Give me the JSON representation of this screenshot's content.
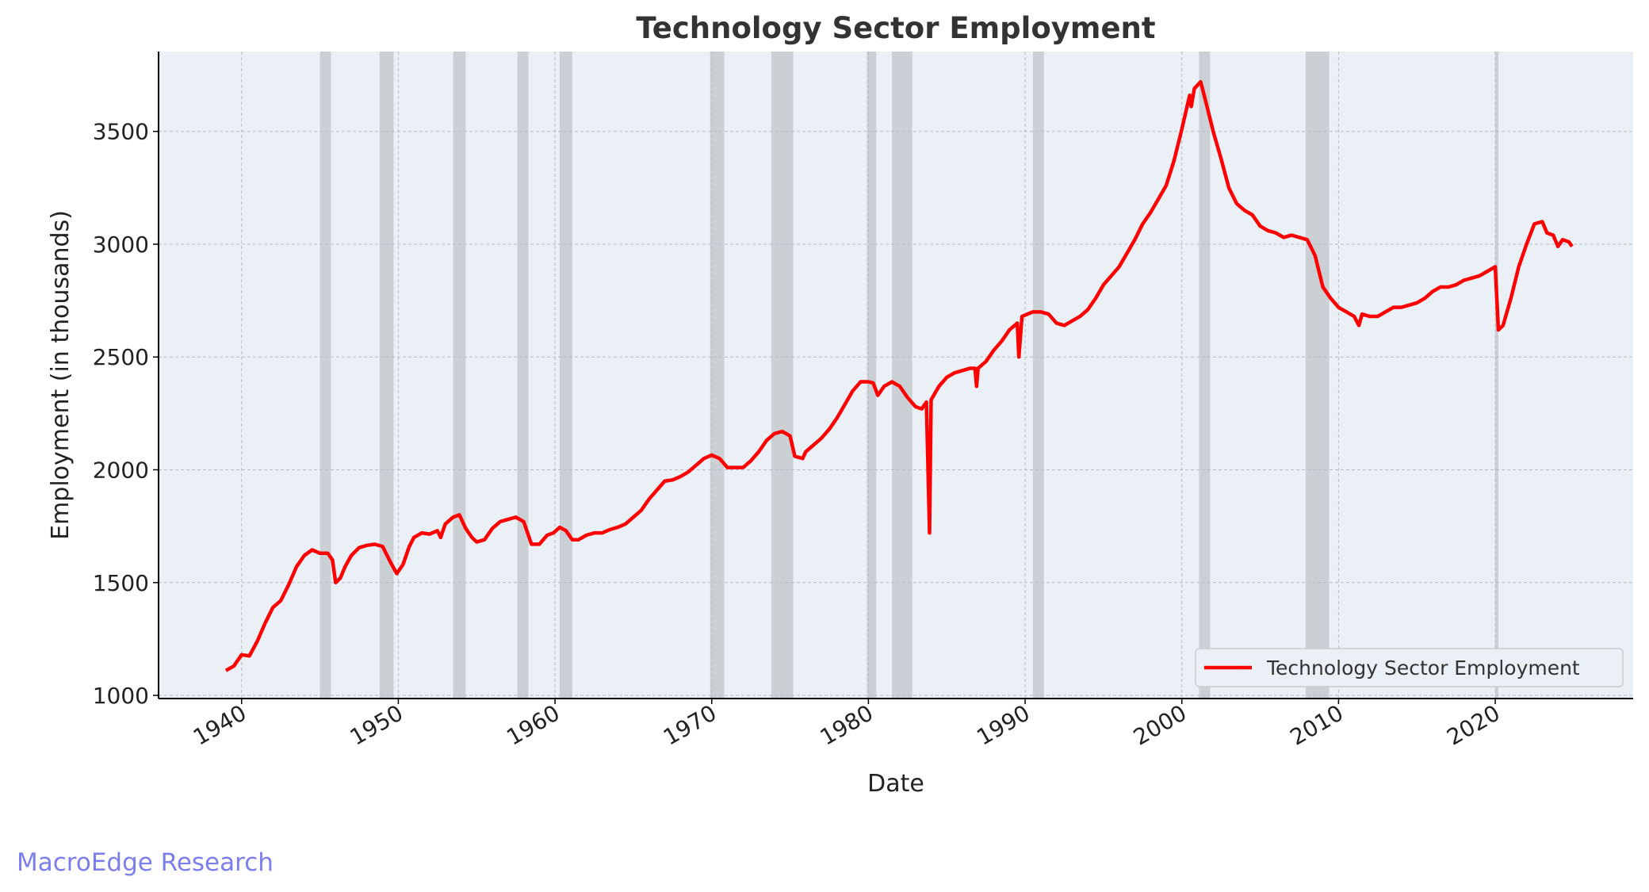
{
  "chart_data": {
    "type": "line",
    "title": "Technology Sector Employment",
    "xlabel": "Date",
    "ylabel": "Employment (in thousands)",
    "watermark": "MacroEdge Research",
    "xlim": [
      1934.7,
      2028.8
    ],
    "ylim": [
      986,
      3854
    ],
    "xticks": [
      1940,
      1950,
      1960,
      1970,
      1980,
      1990,
      2000,
      2010,
      2020
    ],
    "yticks": [
      1000,
      1500,
      2000,
      2500,
      3000,
      3500
    ],
    "grid": true,
    "legend": "lower right",
    "recession_color": "#c5cacf",
    "recessions": [
      [
        1945.0,
        1945.7
      ],
      [
        1948.8,
        1949.7
      ],
      [
        1953.5,
        1954.3
      ],
      [
        1957.6,
        1958.3
      ],
      [
        1960.3,
        1961.1
      ],
      [
        1969.9,
        1970.8
      ],
      [
        1973.8,
        1975.2
      ],
      [
        1979.9,
        1980.5
      ],
      [
        1981.5,
        1982.8
      ],
      [
        1990.5,
        1991.2
      ],
      [
        2001.1,
        2001.8
      ],
      [
        2007.9,
        2009.4
      ],
      [
        2020.0,
        2020.2
      ]
    ],
    "x": [
      1939.0,
      1939.5,
      1940.0,
      1940.5,
      1941.0,
      1941.5,
      1942,
      1942.5,
      1943,
      1943.5,
      1944,
      1944.5,
      1945,
      1945.5,
      1945.8,
      1946,
      1946.3,
      1946.6,
      1947,
      1947.5,
      1948,
      1948.5,
      1949,
      1949.5,
      1949.9,
      1950.3,
      1950.7,
      1951,
      1951.5,
      1952,
      1952.5,
      1952.7,
      1953,
      1953.5,
      1953.9,
      1954.3,
      1954.7,
      1955,
      1955.5,
      1956,
      1956.5,
      1957,
      1957.5,
      1958,
      1958.5,
      1959,
      1959.5,
      1959.9,
      1960.3,
      1960.7,
      1961.1,
      1961.5,
      1962,
      1962.5,
      1963,
      1963.5,
      1964,
      1964.5,
      1965,
      1965.5,
      1966,
      1966.5,
      1967,
      1967.5,
      1968,
      1968.5,
      1969,
      1969.5,
      1970,
      1970.5,
      1971,
      1971.5,
      1972,
      1972.5,
      1973,
      1973.5,
      1974,
      1974.5,
      1975,
      1975.3,
      1975.8,
      1976,
      1976.5,
      1977,
      1977.5,
      1978,
      1978.5,
      1979,
      1979.5,
      1980,
      1980.3,
      1980.6,
      1981,
      1981.5,
      1982,
      1982.5,
      1983,
      1983.4,
      1983.7,
      1983.9,
      1984,
      1984.5,
      1985,
      1985.5,
      1986,
      1986.5,
      1986.8,
      1986.9,
      1987,
      1987.5,
      1988,
      1988.5,
      1989,
      1989.5,
      1989.6,
      1989.8,
      1990.5,
      1991,
      1991.5,
      1992,
      1992.5,
      1993,
      1993.5,
      1994,
      1994.5,
      1995,
      1995.5,
      1996,
      1996.5,
      1997,
      1997.5,
      1998,
      1998.5,
      1999,
      1999.5,
      2000,
      2000.3,
      2000.5,
      2000.6,
      2000.8,
      2001.2,
      2001.5,
      2002,
      2002.5,
      2003,
      2003.5,
      2004,
      2004.5,
      2005,
      2005.5,
      2006,
      2006.5,
      2007,
      2007.5,
      2008,
      2008.5,
      2009,
      2009.5,
      2010,
      2010.5,
      2011,
      2011.3,
      2011.5,
      2012,
      2012.5,
      2013,
      2013.5,
      2014,
      2014.5,
      2015,
      2015.5,
      2016,
      2016.5,
      2017,
      2017.5,
      2018,
      2018.5,
      2019,
      2019.5,
      2020,
      2020.2,
      2020.5,
      2021,
      2021.5,
      2022,
      2022.5,
      2023,
      2023.3,
      2023.7,
      2024,
      2024.3,
      2024.7,
      2024.9
    ],
    "series": [
      {
        "name": "Technology Sector Employment",
        "color": "#ff0000",
        "values": [
          1110,
          1130,
          1180,
          1175,
          1240,
          1320,
          1390,
          1420,
          1490,
          1570,
          1620,
          1645,
          1630,
          1630,
          1600,
          1500,
          1520,
          1570,
          1620,
          1655,
          1665,
          1670,
          1660,
          1590,
          1540,
          1580,
          1660,
          1700,
          1720,
          1715,
          1730,
          1700,
          1760,
          1790,
          1800,
          1740,
          1700,
          1680,
          1690,
          1740,
          1770,
          1780,
          1790,
          1770,
          1670,
          1670,
          1710,
          1720,
          1745,
          1730,
          1690,
          1690,
          1710,
          1720,
          1720,
          1735,
          1745,
          1760,
          1790,
          1820,
          1870,
          1910,
          1950,
          1955,
          1970,
          1990,
          2020,
          2050,
          2065,
          2050,
          2010,
          2010,
          2010,
          2040,
          2080,
          2130,
          2160,
          2170,
          2150,
          2060,
          2050,
          2080,
          2110,
          2140,
          2180,
          2230,
          2290,
          2350,
          2390,
          2390,
          2385,
          2330,
          2370,
          2390,
          2370,
          2320,
          2280,
          2270,
          2300,
          1720,
          2310,
          2370,
          2410,
          2430,
          2440,
          2450,
          2450,
          2370,
          2450,
          2480,
          2530,
          2570,
          2620,
          2650,
          2500,
          2680,
          2700,
          2700,
          2690,
          2650,
          2640,
          2660,
          2680,
          2710,
          2760,
          2820,
          2860,
          2900,
          2960,
          3020,
          3090,
          3140,
          3200,
          3260,
          3370,
          3510,
          3600,
          3660,
          3610,
          3690,
          3720,
          3640,
          3500,
          3380,
          3250,
          3180,
          3150,
          3130,
          3080,
          3060,
          3050,
          3030,
          3040,
          3030,
          3020,
          2950,
          2810,
          2760,
          2720,
          2700,
          2680,
          2640,
          2690,
          2680,
          2680,
          2700,
          2720,
          2720,
          2730,
          2740,
          2760,
          2790,
          2810,
          2810,
          2820,
          2840,
          2850,
          2860,
          2880,
          2900,
          2620,
          2640,
          2760,
          2900,
          3000,
          3090,
          3100,
          3050,
          3040,
          2990,
          3020,
          3010,
          2990
        ]
      }
    ]
  }
}
